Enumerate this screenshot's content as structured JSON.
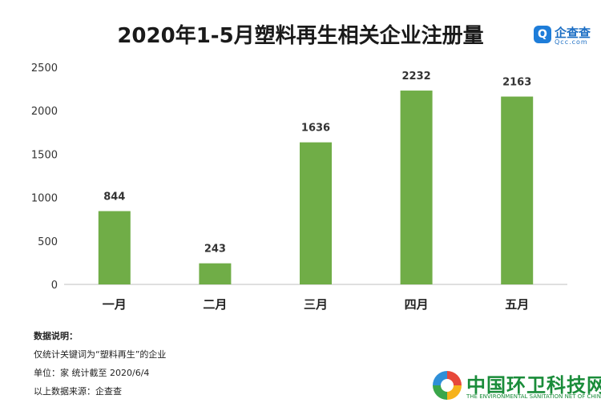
{
  "title": "2020年1-5月塑料再生相关企业注册量",
  "brand": {
    "name": "企查查",
    "domain": "Qcc.com",
    "mark": "Q"
  },
  "notes": [
    "数据说明：",
    "仅统计关键词为“塑料再生”的企业",
    "单位：家    统计截至 2020/6/4",
    "以上数据来源：企查查"
  ],
  "logo": {
    "name": "中国环卫科技网",
    "sub": "THE ENVIRONMENTAL SANITATION NET OF CHINA"
  },
  "colors": {
    "bar": "#70ad47",
    "axis": "#bfbfbf"
  },
  "chart_data": {
    "type": "bar",
    "title": "2020年1-5月塑料再生相关企业注册量",
    "categories": [
      "一月",
      "二月",
      "三月",
      "四月",
      "五月"
    ],
    "values": [
      844,
      243,
      1636,
      2232,
      2163
    ],
    "ylim": [
      0,
      2500
    ],
    "yticks": [
      "0",
      "500",
      "1000",
      "1500",
      "2000",
      "2500"
    ],
    "data_labels": [
      "844",
      "243",
      "1636",
      "2232",
      "2163"
    ],
    "grid": false,
    "xlabel": "",
    "ylabel": ""
  }
}
